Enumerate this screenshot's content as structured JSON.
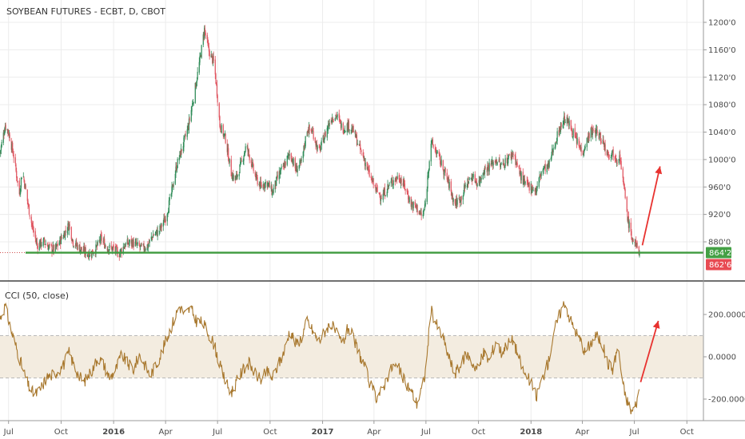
{
  "chart_data": [
    {
      "type": "candlestick",
      "title": "SOYBEAN FUTURES - ECBT, D, CBOT",
      "y_ticks": [
        "1200'0",
        "1160'0",
        "1120'0",
        "1080'0",
        "1040'0",
        "1000'0",
        "960'0",
        "920'0",
        "880'0"
      ],
      "y_tick_values": [
        1200,
        1160,
        1120,
        1080,
        1040,
        1000,
        960,
        920,
        880
      ],
      "ylim": [
        850,
        1222
      ],
      "x_ticks": [
        "Jul",
        "Oct",
        "2016",
        "Apr",
        "Jul",
        "Oct",
        "2017",
        "Apr",
        "Jul",
        "Oct",
        "2018",
        "Apr",
        "Jul",
        "Oct"
      ],
      "x_tick_dates": [
        "2015-07-01",
        "2015-10-01",
        "2016-01-01",
        "2016-04-01",
        "2016-07-01",
        "2016-10-01",
        "2017-01-01",
        "2017-04-01",
        "2017-07-01",
        "2017-10-01",
        "2018-01-01",
        "2018-04-01",
        "2018-07-01",
        "2018-10-01"
      ],
      "xlim": [
        "2015-06-16",
        "2018-10-30"
      ],
      "close_path": [
        [
          "2015-06-16",
          1010
        ],
        [
          "2015-06-25",
          1050
        ],
        [
          "2015-07-01",
          1040
        ],
        [
          "2015-07-10",
          1005
        ],
        [
          "2015-07-20",
          950
        ],
        [
          "2015-07-25",
          985
        ],
        [
          "2015-08-05",
          930
        ],
        [
          "2015-08-12",
          900
        ],
        [
          "2015-08-20",
          875
        ],
        [
          "2015-09-01",
          880
        ],
        [
          "2015-09-10",
          872
        ],
        [
          "2015-09-20",
          868
        ],
        [
          "2015-10-05",
          890
        ],
        [
          "2015-10-15",
          905
        ],
        [
          "2015-10-22",
          880
        ],
        [
          "2015-11-01",
          872
        ],
        [
          "2015-11-10",
          866
        ],
        [
          "2015-11-20",
          862
        ],
        [
          "2015-12-01",
          870
        ],
        [
          "2015-12-10",
          885
        ],
        [
          "2015-12-20",
          872
        ],
        [
          "2016-01-01",
          870
        ],
        [
          "2016-01-10",
          862
        ],
        [
          "2016-01-20",
          875
        ],
        [
          "2016-02-01",
          880
        ],
        [
          "2016-02-10",
          875
        ],
        [
          "2016-02-20",
          870
        ],
        [
          "2016-03-01",
          875
        ],
        [
          "2016-03-10",
          890
        ],
        [
          "2016-03-20",
          895
        ],
        [
          "2016-04-01",
          915
        ],
        [
          "2016-04-10",
          945
        ],
        [
          "2016-04-20",
          990
        ],
        [
          "2016-05-01",
          1020
        ],
        [
          "2016-05-10",
          1045
        ],
        [
          "2016-05-20",
          1090
        ],
        [
          "2016-06-01",
          1150
        ],
        [
          "2016-06-08",
          1190
        ],
        [
          "2016-06-15",
          1160
        ],
        [
          "2016-06-25",
          1140
        ],
        [
          "2016-07-01",
          1090
        ],
        [
          "2016-07-05",
          1050
        ],
        [
          "2016-07-15",
          1030
        ],
        [
          "2016-07-25",
          980
        ],
        [
          "2016-08-01",
          970
        ],
        [
          "2016-08-10",
          990
        ],
        [
          "2016-08-20",
          1020
        ],
        [
          "2016-08-28",
          1000
        ],
        [
          "2016-09-05",
          975
        ],
        [
          "2016-09-15",
          960
        ],
        [
          "2016-09-25",
          968
        ],
        [
          "2016-10-05",
          952
        ],
        [
          "2016-10-15",
          975
        ],
        [
          "2016-10-25",
          990
        ],
        [
          "2016-11-05",
          1010
        ],
        [
          "2016-11-15",
          985
        ],
        [
          "2016-11-25",
          995
        ],
        [
          "2016-12-05",
          1045
        ],
        [
          "2016-12-15",
          1040
        ],
        [
          "2016-12-25",
          1010
        ],
        [
          "2017-01-05",
          1035
        ],
        [
          "2017-01-15",
          1060
        ],
        [
          "2017-01-25",
          1065
        ],
        [
          "2017-02-05",
          1045
        ],
        [
          "2017-02-15",
          1050
        ],
        [
          "2017-02-25",
          1040
        ],
        [
          "2017-03-05",
          1020
        ],
        [
          "2017-03-15",
          1000
        ],
        [
          "2017-03-25",
          975
        ],
        [
          "2017-04-05",
          955
        ],
        [
          "2017-04-15",
          945
        ],
        [
          "2017-04-25",
          960
        ],
        [
          "2017-05-05",
          970
        ],
        [
          "2017-05-15",
          975
        ],
        [
          "2017-05-25",
          960
        ],
        [
          "2017-06-05",
          935
        ],
        [
          "2017-06-15",
          930
        ],
        [
          "2017-06-25",
          915
        ],
        [
          "2017-07-01",
          940
        ],
        [
          "2017-07-05",
          985
        ],
        [
          "2017-07-10",
          1025
        ],
        [
          "2017-07-20",
          1010
        ],
        [
          "2017-08-01",
          985
        ],
        [
          "2017-08-10",
          965
        ],
        [
          "2017-08-20",
          935
        ],
        [
          "2017-09-01",
          945
        ],
        [
          "2017-09-10",
          965
        ],
        [
          "2017-09-20",
          975
        ],
        [
          "2017-10-01",
          965
        ],
        [
          "2017-10-10",
          985
        ],
        [
          "2017-10-20",
          990
        ],
        [
          "2017-11-01",
          1000
        ],
        [
          "2017-11-10",
          990
        ],
        [
          "2017-11-20",
          1000
        ],
        [
          "2017-12-01",
          1010
        ],
        [
          "2017-12-10",
          985
        ],
        [
          "2017-12-20",
          965
        ],
        [
          "2018-01-01",
          960
        ],
        [
          "2018-01-10",
          955
        ],
        [
          "2018-01-20",
          985
        ],
        [
          "2018-02-01",
          990
        ],
        [
          "2018-02-10",
          1020
        ],
        [
          "2018-02-20",
          1045
        ],
        [
          "2018-03-01",
          1060
        ],
        [
          "2018-03-10",
          1050
        ],
        [
          "2018-03-20",
          1030
        ],
        [
          "2018-04-01",
          1010
        ],
        [
          "2018-04-05",
          1020
        ],
        [
          "2018-04-15",
          1040
        ],
        [
          "2018-04-25",
          1040
        ],
        [
          "2018-05-05",
          1030
        ],
        [
          "2018-05-15",
          1010
        ],
        [
          "2018-05-25",
          1010
        ],
        [
          "2018-06-01",
          1000
        ],
        [
          "2018-06-05",
          1010
        ],
        [
          "2018-06-10",
          975
        ],
        [
          "2018-06-15",
          945
        ],
        [
          "2018-06-20",
          910
        ],
        [
          "2018-06-27",
          885
        ],
        [
          "2018-07-03",
          875
        ],
        [
          "2018-07-10",
          865
        ]
      ],
      "annotations": {
        "support_level": 864.25,
        "support_label": "864'2",
        "last_price_label": "862'6",
        "arrow": {
          "from": [
            "2018-07-15",
            875
          ],
          "to": [
            "2018-08-15",
            990
          ]
        }
      },
      "colors": {
        "up": "#2e8b57",
        "down": "#e05560",
        "support": "#3e9a3e",
        "support_label_bg": "#44a045",
        "price_label_bg": "#e84a52",
        "arrow": "#e8322f",
        "axis": "#9a9a9a",
        "grid": "#ececec"
      }
    },
    {
      "type": "line",
      "title": "CCI (50, close)",
      "y_ticks": [
        "200.0000",
        "0.0000",
        "-200.0000"
      ],
      "y_tick_values": [
        200,
        0,
        -200
      ],
      "ylim": [
        -290,
        310
      ],
      "band": [
        -100,
        100
      ],
      "series": [
        {
          "name": "CCI (50, close)",
          "points": [
            [
              "2015-06-16",
              180
            ],
            [
              "2015-06-25",
              240
            ],
            [
              "2015-07-05",
              130
            ],
            [
              "2015-07-15",
              40
            ],
            [
              "2015-07-25",
              -50
            ],
            [
              "2015-08-05",
              -140
            ],
            [
              "2015-08-15",
              -180
            ],
            [
              "2015-08-25",
              -160
            ],
            [
              "2015-09-05",
              -100
            ],
            [
              "2015-09-20",
              -80
            ],
            [
              "2015-10-05",
              -40
            ],
            [
              "2015-10-15",
              20
            ],
            [
              "2015-10-22",
              -30
            ],
            [
              "2015-11-01",
              -90
            ],
            [
              "2015-11-10",
              -120
            ],
            [
              "2015-11-25",
              -60
            ],
            [
              "2015-12-05",
              0
            ],
            [
              "2015-12-15",
              -40
            ],
            [
              "2015-12-25",
              -100
            ],
            [
              "2016-01-05",
              -60
            ],
            [
              "2016-01-15",
              10
            ],
            [
              "2016-01-25",
              -30
            ],
            [
              "2016-02-05",
              -60
            ],
            [
              "2016-02-15",
              10
            ],
            [
              "2016-02-25",
              -40
            ],
            [
              "2016-03-05",
              -90
            ],
            [
              "2016-03-15",
              -40
            ],
            [
              "2016-03-25",
              20
            ],
            [
              "2016-04-05",
              100
            ],
            [
              "2016-04-15",
              170
            ],
            [
              "2016-04-25",
              240
            ],
            [
              "2016-05-05",
              200
            ],
            [
              "2016-05-15",
              230
            ],
            [
              "2016-05-25",
              170
            ],
            [
              "2016-06-05",
              160
            ],
            [
              "2016-06-15",
              110
            ],
            [
              "2016-06-25",
              60
            ],
            [
              "2016-07-05",
              -40
            ],
            [
              "2016-07-15",
              -120
            ],
            [
              "2016-07-25",
              -170
            ],
            [
              "2016-08-05",
              -110
            ],
            [
              "2016-08-15",
              -60
            ],
            [
              "2016-08-25",
              -30
            ],
            [
              "2016-09-05",
              -80
            ],
            [
              "2016-09-15",
              -110
            ],
            [
              "2016-09-25",
              -70
            ],
            [
              "2016-10-05",
              -100
            ],
            [
              "2016-10-15",
              -40
            ],
            [
              "2016-10-25",
              20
            ],
            [
              "2016-11-05",
              130
            ],
            [
              "2016-11-15",
              60
            ],
            [
              "2016-11-25",
              90
            ],
            [
              "2016-12-05",
              170
            ],
            [
              "2016-12-15",
              120
            ],
            [
              "2016-12-25",
              70
            ],
            [
              "2017-01-05",
              120
            ],
            [
              "2017-01-15",
              160
            ],
            [
              "2017-01-25",
              110
            ],
            [
              "2017-02-05",
              60
            ],
            [
              "2017-02-15",
              140
            ],
            [
              "2017-02-25",
              80
            ],
            [
              "2017-03-05",
              20
            ],
            [
              "2017-03-15",
              -40
            ],
            [
              "2017-03-25",
              -130
            ],
            [
              "2017-04-05",
              -190
            ],
            [
              "2017-04-15",
              -160
            ],
            [
              "2017-04-25",
              -90
            ],
            [
              "2017-05-05",
              -40
            ],
            [
              "2017-05-15",
              -60
            ],
            [
              "2017-05-25",
              -120
            ],
            [
              "2017-06-05",
              -160
            ],
            [
              "2017-06-15",
              -220
            ],
            [
              "2017-06-25",
              -140
            ],
            [
              "2017-07-01",
              -60
            ],
            [
              "2017-07-05",
              80
            ],
            [
              "2017-07-10",
              220
            ],
            [
              "2017-07-20",
              150
            ],
            [
              "2017-08-01",
              80
            ],
            [
              "2017-08-10",
              0
            ],
            [
              "2017-08-20",
              -80
            ],
            [
              "2017-09-01",
              -40
            ],
            [
              "2017-09-10",
              20
            ],
            [
              "2017-09-20",
              -30
            ],
            [
              "2017-10-01",
              -60
            ],
            [
              "2017-10-10",
              20
            ],
            [
              "2017-10-20",
              -20
            ],
            [
              "2017-11-01",
              80
            ],
            [
              "2017-11-10",
              20
            ],
            [
              "2017-11-20",
              60
            ],
            [
              "2017-12-01",
              80
            ],
            [
              "2017-12-10",
              0
            ],
            [
              "2017-12-20",
              -80
            ],
            [
              "2018-01-01",
              -120
            ],
            [
              "2018-01-10",
              -190
            ],
            [
              "2018-01-20",
              -110
            ],
            [
              "2018-02-01",
              -20
            ],
            [
              "2018-02-10",
              120
            ],
            [
              "2018-02-20",
              200
            ],
            [
              "2018-03-01",
              260
            ],
            [
              "2018-03-10",
              180
            ],
            [
              "2018-03-20",
              120
            ],
            [
              "2018-04-01",
              60
            ],
            [
              "2018-04-05",
              20
            ],
            [
              "2018-04-15",
              60
            ],
            [
              "2018-04-25",
              100
            ],
            [
              "2018-05-05",
              70
            ],
            [
              "2018-05-15",
              -30
            ],
            [
              "2018-05-25",
              -60
            ],
            [
              "2018-06-01",
              40
            ],
            [
              "2018-06-05",
              0
            ],
            [
              "2018-06-10",
              -120
            ],
            [
              "2018-06-15",
              -180
            ],
            [
              "2018-06-20",
              -220
            ],
            [
              "2018-06-27",
              -260
            ],
            [
              "2018-07-03",
              -230
            ],
            [
              "2018-07-10",
              -160
            ]
          ]
        }
      ],
      "annotations": {
        "arrow": {
          "from": [
            "2018-07-12",
            -120
          ],
          "to": [
            "2018-08-12",
            170
          ]
        }
      },
      "colors": {
        "line": "#a8782e",
        "band": "#f3ece0",
        "band_line": "#b9b9b9",
        "arrow": "#e8322f"
      }
    }
  ]
}
